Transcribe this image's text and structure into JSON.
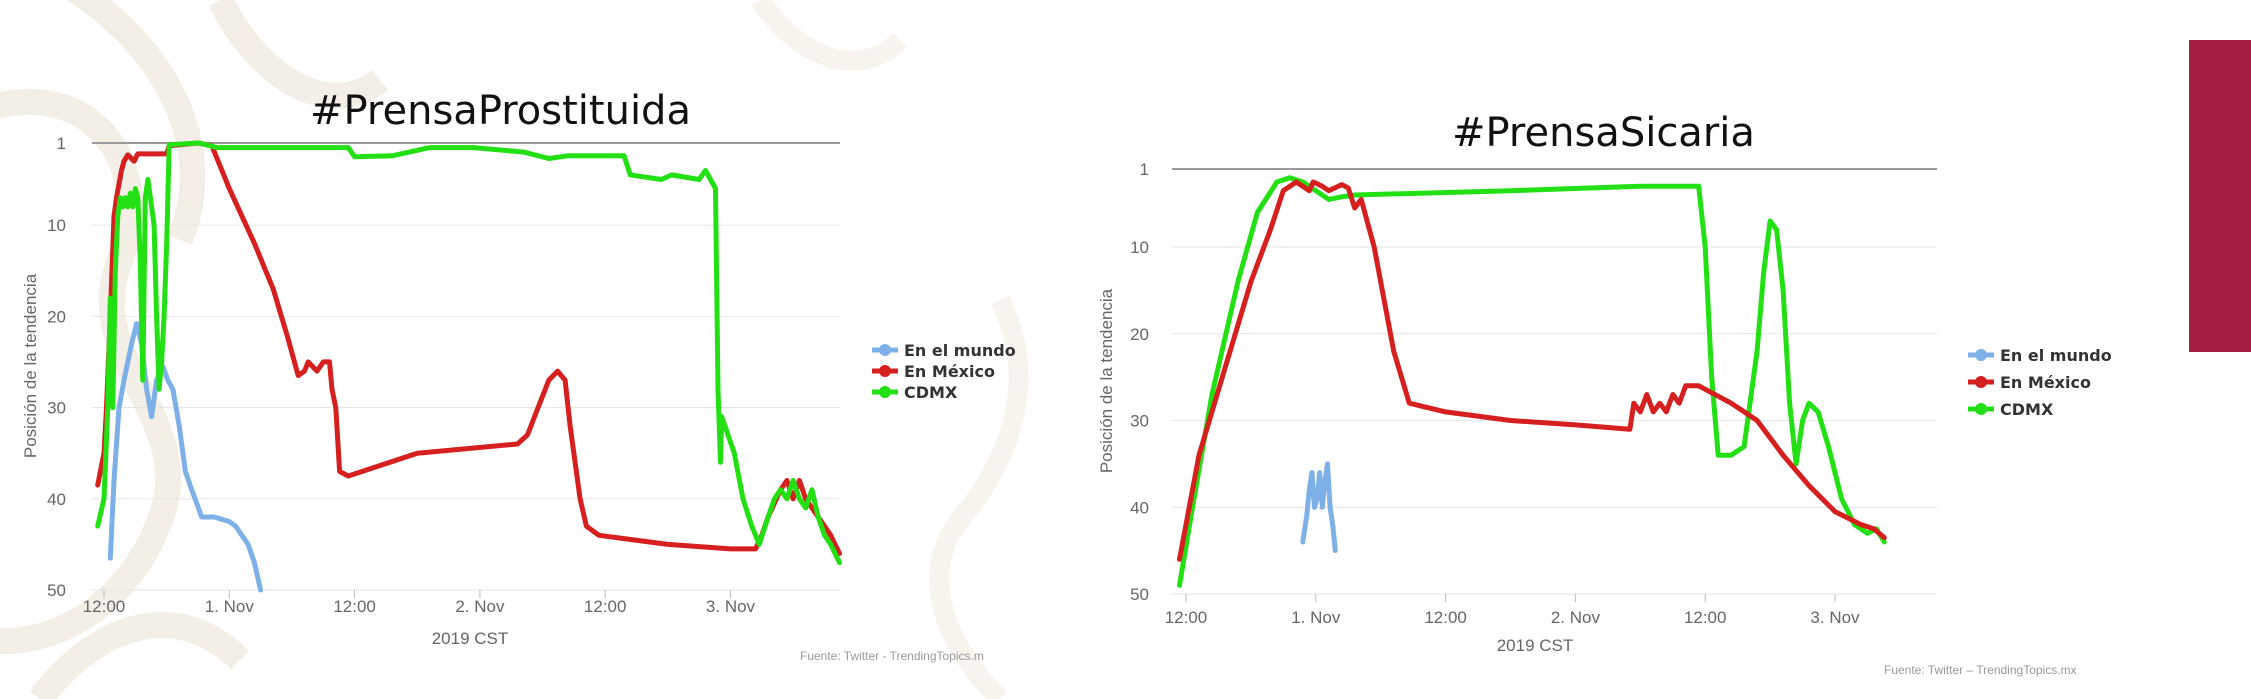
{
  "colors": {
    "world": "#7eb0e8",
    "mexico": "#d61f1f",
    "cdmx": "#22e013",
    "accent": "#a21f42",
    "watermark": "#efe8dc"
  },
  "chart_data": [
    {
      "type": "line",
      "title": "#PrensaProstituida",
      "xlabel": "2019 CST",
      "ylabel": "Posición de la tendencia",
      "x_tick_labels": [
        "12:00",
        "1. Nov",
        "12:00",
        "2. Nov",
        "12:00",
        "3. Nov"
      ],
      "y_tick_labels": [
        "1",
        "10",
        "20",
        "30",
        "40",
        "50"
      ],
      "ylim": [
        50,
        1
      ],
      "y_reversed": true,
      "grid": true,
      "legend_position": "right",
      "source": "Fuente: Twitter - TrendingTopics.m",
      "series": [
        {
          "name": "En el mundo",
          "points": [
            [
              0.05,
              46.5
            ],
            [
              0.08,
              38
            ],
            [
              0.12,
              30
            ],
            [
              0.16,
              27
            ],
            [
              0.22,
              23
            ],
            [
              0.26,
              20.8
            ],
            [
              0.3,
              23
            ],
            [
              0.34,
              28
            ],
            [
              0.38,
              31
            ],
            [
              0.42,
              27
            ],
            [
              0.47,
              25.5
            ],
            [
              0.51,
              27
            ],
            [
              0.55,
              28
            ],
            [
              0.6,
              32
            ],
            [
              0.65,
              37
            ],
            [
              0.7,
              39
            ],
            [
              0.78,
              42
            ],
            [
              0.88,
              42
            ],
            [
              1.0,
              42.5
            ],
            [
              1.05,
              43
            ],
            [
              1.15,
              45
            ],
            [
              1.2,
              47
            ],
            [
              1.25,
              50
            ]
          ]
        },
        {
          "name": "En México",
          "points": [
            [
              -0.05,
              38.5
            ],
            [
              0.0,
              35
            ],
            [
              0.02,
              30
            ],
            [
              0.05,
              20
            ],
            [
              0.08,
              9
            ],
            [
              0.1,
              7
            ],
            [
              0.14,
              4
            ],
            [
              0.16,
              3
            ],
            [
              0.19,
              2.3
            ],
            [
              0.24,
              3
            ],
            [
              0.27,
              2.2
            ],
            [
              0.5,
              2.2
            ],
            [
              0.52,
              1.3
            ],
            [
              0.75,
              1.0
            ],
            [
              0.86,
              1.3
            ],
            [
              1.0,
              6
            ],
            [
              1.2,
              12
            ],
            [
              1.35,
              17
            ],
            [
              1.46,
              22
            ],
            [
              1.55,
              26.5
            ],
            [
              1.6,
              26
            ],
            [
              1.63,
              25
            ],
            [
              1.7,
              26
            ],
            [
              1.75,
              25
            ],
            [
              1.8,
              25
            ],
            [
              1.82,
              28
            ],
            [
              1.85,
              30
            ],
            [
              1.88,
              37
            ],
            [
              1.95,
              37.5
            ],
            [
              2.5,
              35
            ],
            [
              3.3,
              34
            ],
            [
              3.38,
              33
            ],
            [
              3.45,
              30.5
            ],
            [
              3.55,
              27
            ],
            [
              3.62,
              26
            ],
            [
              3.68,
              27
            ],
            [
              3.72,
              32
            ],
            [
              3.8,
              40
            ],
            [
              3.85,
              43
            ],
            [
              3.95,
              44
            ],
            [
              4.5,
              45
            ],
            [
              5.0,
              45.5
            ],
            [
              5.2,
              45.5
            ],
            [
              5.25,
              44
            ],
            [
              5.3,
              42
            ],
            [
              5.4,
              39
            ],
            [
              5.45,
              38
            ],
            [
              5.5,
              40
            ],
            [
              5.55,
              38
            ],
            [
              5.6,
              40
            ],
            [
              5.65,
              41
            ],
            [
              5.7,
              42
            ],
            [
              5.75,
              43
            ],
            [
              5.8,
              44
            ],
            [
              5.87,
              46
            ]
          ]
        },
        {
          "name": "CDMX",
          "points": [
            [
              -0.05,
              43
            ],
            [
              0.0,
              40
            ],
            [
              0.03,
              30
            ],
            [
              0.05,
              18
            ],
            [
              0.07,
              30
            ],
            [
              0.09,
              15
            ],
            [
              0.11,
              9
            ],
            [
              0.13,
              7
            ],
            [
              0.15,
              8
            ],
            [
              0.17,
              7
            ],
            [
              0.19,
              8
            ],
            [
              0.21,
              6.5
            ],
            [
              0.23,
              8
            ],
            [
              0.25,
              6
            ],
            [
              0.27,
              7
            ],
            [
              0.29,
              14
            ],
            [
              0.31,
              27
            ],
            [
              0.33,
              7
            ],
            [
              0.35,
              5
            ],
            [
              0.37,
              7
            ],
            [
              0.38,
              8
            ],
            [
              0.4,
              10
            ],
            [
              0.42,
              20
            ],
            [
              0.44,
              28
            ],
            [
              0.46,
              25
            ],
            [
              0.48,
              20
            ],
            [
              0.5,
              12
            ],
            [
              0.52,
              1.2
            ],
            [
              0.76,
              1.0
            ],
            [
              0.9,
              1.5
            ],
            [
              1.95,
              1.5
            ],
            [
              2.0,
              2.5
            ],
            [
              2.3,
              2.4
            ],
            [
              2.6,
              1.5
            ],
            [
              2.95,
              1.5
            ],
            [
              3.35,
              2.0
            ],
            [
              3.55,
              2.7
            ],
            [
              3.7,
              2.4
            ],
            [
              4.15,
              2.4
            ],
            [
              4.2,
              4.5
            ],
            [
              4.45,
              5.0
            ],
            [
              4.53,
              4.5
            ],
            [
              4.75,
              5.0
            ],
            [
              4.8,
              4.0
            ],
            [
              4.84,
              5.0
            ],
            [
              4.88,
              6.0
            ],
            [
              4.9,
              28
            ],
            [
              4.92,
              36
            ],
            [
              4.93,
              31
            ],
            [
              4.98,
              33
            ],
            [
              5.03,
              35
            ],
            [
              5.1,
              40
            ],
            [
              5.17,
              43
            ],
            [
              5.23,
              45
            ],
            [
              5.3,
              42
            ],
            [
              5.35,
              40
            ],
            [
              5.4,
              39
            ],
            [
              5.45,
              40
            ],
            [
              5.5,
              38
            ],
            [
              5.55,
              40
            ],
            [
              5.6,
              41
            ],
            [
              5.65,
              39
            ],
            [
              5.7,
              42
            ],
            [
              5.75,
              44
            ],
            [
              5.8,
              45
            ],
            [
              5.87,
              47
            ]
          ]
        }
      ]
    },
    {
      "type": "line",
      "title": "#PrensaSicaria",
      "xlabel": "2019 CST",
      "ylabel": "Posición de la tendencia",
      "x_tick_labels": [
        "12:00",
        "1. Nov",
        "12:00",
        "2. Nov",
        "12:00",
        "3. Nov"
      ],
      "y_tick_labels": [
        "1",
        "10",
        "20",
        "30",
        "40",
        "50"
      ],
      "ylim": [
        50,
        1
      ],
      "y_reversed": true,
      "grid": true,
      "legend_position": "right",
      "source": "Fuente: Twitter – TrendingTopics.mx",
      "series": [
        {
          "name": "En el mundo",
          "points": [
            [
              0.9,
              44
            ],
            [
              0.93,
              41
            ],
            [
              0.95,
              38
            ],
            [
              0.97,
              36
            ],
            [
              0.99,
              40
            ],
            [
              1.01,
              39
            ],
            [
              1.03,
              36
            ],
            [
              1.05,
              40
            ],
            [
              1.07,
              37
            ],
            [
              1.09,
              35
            ],
            [
              1.11,
              40
            ],
            [
              1.13,
              42
            ],
            [
              1.15,
              45
            ]
          ]
        },
        {
          "name": "En México",
          "points": [
            [
              -0.05,
              46
            ],
            [
              0.1,
              34
            ],
            [
              0.3,
              24
            ],
            [
              0.5,
              14
            ],
            [
              0.65,
              8
            ],
            [
              0.75,
              3.5
            ],
            [
              0.85,
              2.5
            ],
            [
              0.95,
              3.5
            ],
            [
              0.98,
              2.5
            ],
            [
              1.05,
              3
            ],
            [
              1.1,
              3.5
            ],
            [
              1.2,
              2.8
            ],
            [
              1.25,
              3.2
            ],
            [
              1.3,
              5.5
            ],
            [
              1.35,
              4.5
            ],
            [
              1.45,
              10
            ],
            [
              1.6,
              22
            ],
            [
              1.72,
              28
            ],
            [
              2.0,
              29
            ],
            [
              2.5,
              30
            ],
            [
              3.0,
              30.5
            ],
            [
              3.42,
              31
            ],
            [
              3.45,
              28
            ],
            [
              3.5,
              29
            ],
            [
              3.55,
              27
            ],
            [
              3.6,
              29
            ],
            [
              3.65,
              28
            ],
            [
              3.7,
              29
            ],
            [
              3.75,
              27
            ],
            [
              3.8,
              28
            ],
            [
              3.85,
              26
            ],
            [
              3.95,
              26
            ],
            [
              4.2,
              28
            ],
            [
              4.4,
              30
            ],
            [
              4.6,
              34
            ],
            [
              4.8,
              37.5
            ],
            [
              5.0,
              40.5
            ],
            [
              5.2,
              42
            ],
            [
              5.3,
              42.5
            ],
            [
              5.38,
              43.5
            ]
          ]
        },
        {
          "name": "CDMX",
          "points": [
            [
              -0.05,
              49
            ],
            [
              0.05,
              40
            ],
            [
              0.2,
              27
            ],
            [
              0.4,
              14
            ],
            [
              0.55,
              6
            ],
            [
              0.7,
              2.5
            ],
            [
              0.8,
              2
            ],
            [
              0.9,
              2.5
            ],
            [
              1.0,
              3.5
            ],
            [
              1.1,
              4.5
            ],
            [
              1.2,
              4.2
            ],
            [
              1.3,
              4.0
            ],
            [
              2.5,
              3.5
            ],
            [
              3.5,
              3.0
            ],
            [
              3.95,
              3.0
            ],
            [
              4.0,
              10
            ],
            [
              4.05,
              25
            ],
            [
              4.1,
              34
            ],
            [
              4.2,
              34
            ],
            [
              4.3,
              33
            ],
            [
              4.4,
              22
            ],
            [
              4.45,
              13
            ],
            [
              4.5,
              7
            ],
            [
              4.55,
              8
            ],
            [
              4.6,
              15
            ],
            [
              4.65,
              28
            ],
            [
              4.7,
              35
            ],
            [
              4.75,
              30
            ],
            [
              4.8,
              28
            ],
            [
              4.87,
              29
            ],
            [
              4.95,
              33
            ],
            [
              5.05,
              39
            ],
            [
              5.15,
              42
            ],
            [
              5.25,
              43
            ],
            [
              5.32,
              42.5
            ],
            [
              5.38,
              44
            ]
          ]
        }
      ]
    }
  ]
}
